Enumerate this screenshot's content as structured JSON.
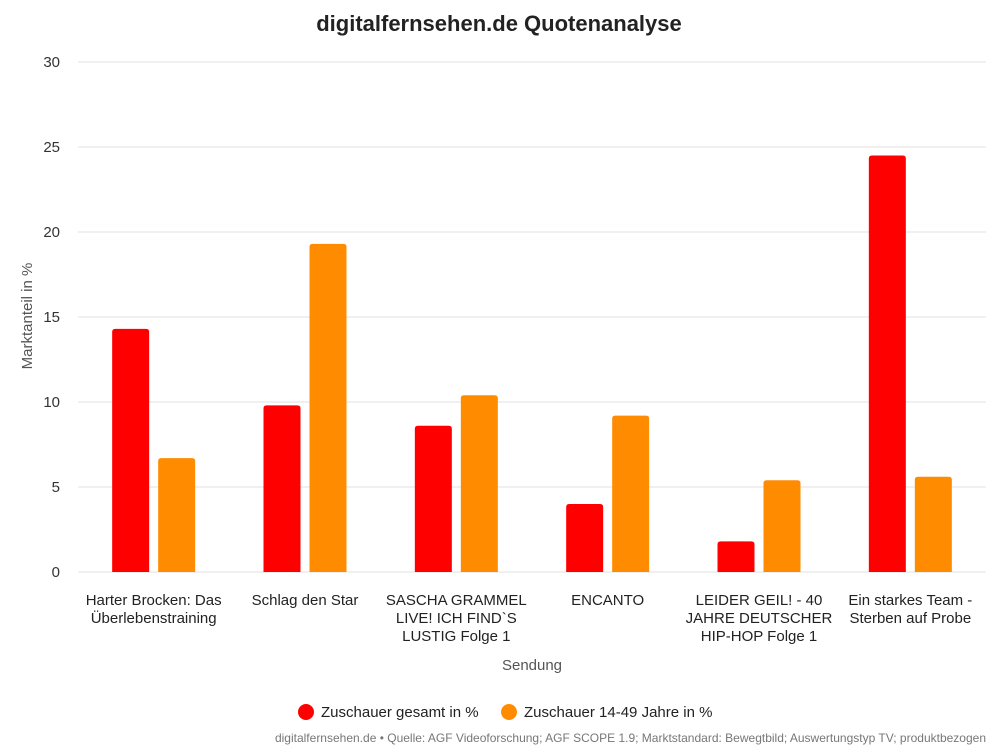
{
  "chart_data": {
    "type": "bar",
    "title": "digitalfernsehen.de Quotenanalyse",
    "xlabel": "Sendung",
    "ylabel": "Marktanteil in %",
    "ylim": [
      0,
      30
    ],
    "yticks": [
      0,
      5,
      10,
      15,
      20,
      25,
      30
    ],
    "grid": true,
    "legend_position": "bottom",
    "categories": [
      [
        "Harter Brocken: Das",
        "Überlebenstraining"
      ],
      [
        "Schlag den Star"
      ],
      [
        "SASCHA GRAMMEL",
        "LIVE! ICH FIND`S",
        "LUSTIG Folge 1"
      ],
      [
        "ENCANTO"
      ],
      [
        "LEIDER GEIL! - 40",
        "JAHRE DEUTSCHER",
        "HIP-HOP Folge 1"
      ],
      [
        "Ein starkes Team -",
        "Sterben auf Probe"
      ]
    ],
    "series": [
      {
        "name": "Zuschauer gesamt in %",
        "color": "#ff0000",
        "values": [
          14.3,
          9.8,
          8.6,
          4.0,
          1.8,
          24.5
        ]
      },
      {
        "name": "Zuschauer 14-49 Jahre in %",
        "color": "#ff8c00",
        "values": [
          6.7,
          19.3,
          10.4,
          9.2,
          5.4,
          5.6
        ]
      }
    ],
    "source_note": "digitalfernsehen.de • Quelle: AGF Videoforschung; AGF SCOPE 1.9; Marktstandard: Bewegtbild; Auswertungstyp TV; produktbezogen"
  }
}
